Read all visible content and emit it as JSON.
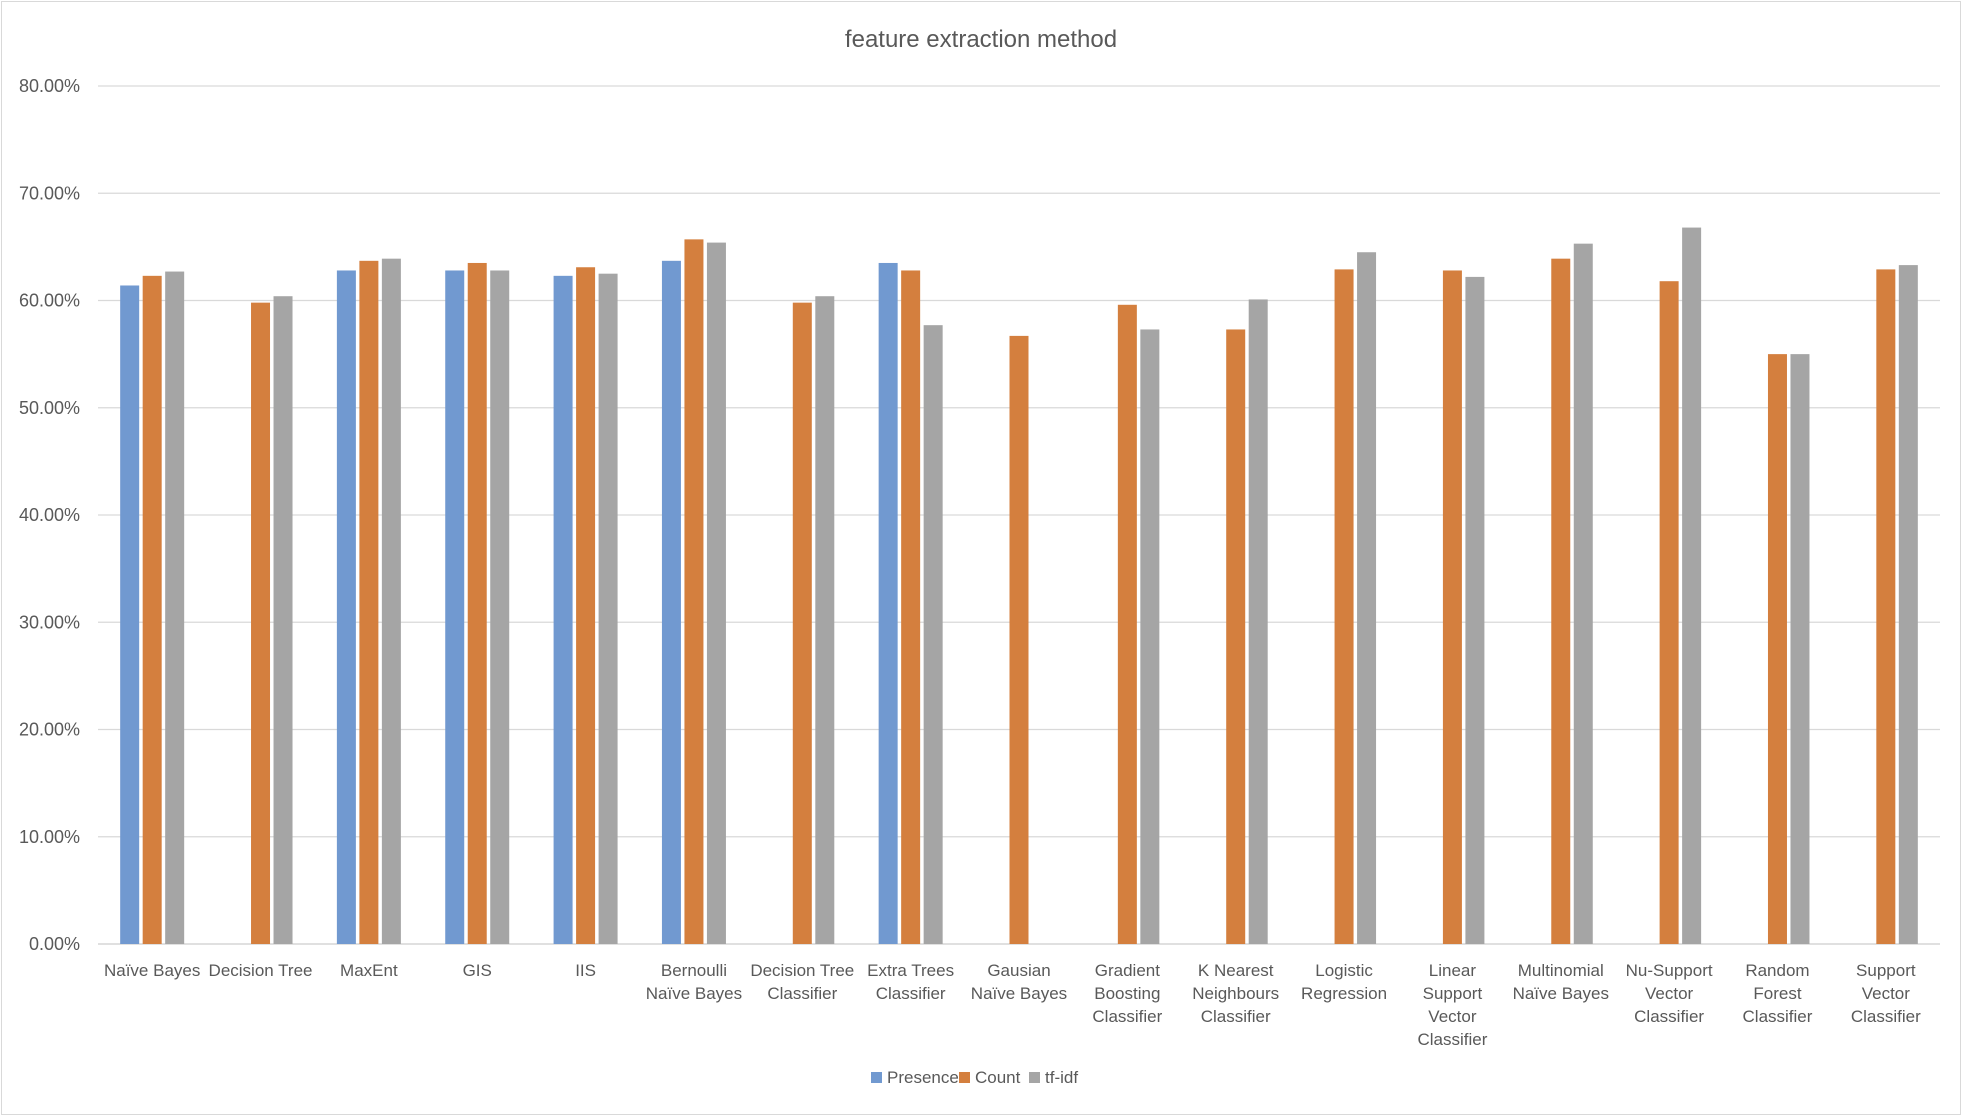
{
  "chart_data": {
    "type": "bar",
    "title": "feature extraction method",
    "xlabel": "",
    "ylabel": "",
    "ylim": [
      0,
      80
    ],
    "y_ticks": [
      "0.00%",
      "10.00%",
      "20.00%",
      "30.00%",
      "40.00%",
      "50.00%",
      "60.00%",
      "70.00%",
      "80.00%"
    ],
    "grid": true,
    "legend_position": "bottom",
    "categories": [
      [
        "Naïve  Bayes"
      ],
      [
        "Decision Tree"
      ],
      [
        "MaxEnt"
      ],
      [
        "GIS"
      ],
      [
        "IIS"
      ],
      [
        "Bernoulli",
        "Naïve Bayes"
      ],
      [
        "Decision Tree",
        "Classifier"
      ],
      [
        "Extra Trees",
        "Classifier"
      ],
      [
        "Gausian",
        "Naïve Bayes"
      ],
      [
        "Gradient",
        "Boosting",
        "Classifier"
      ],
      [
        "K Nearest",
        "Neighbours",
        "Classifier"
      ],
      [
        "Logistic",
        "Regression"
      ],
      [
        "Linear",
        "Support",
        "Vector",
        "Classifier"
      ],
      [
        "Multinomial",
        "Naïve Bayes"
      ],
      [
        "Nu-Support",
        "Vector",
        "Classifier"
      ],
      [
        "Random",
        "Forest",
        "Classifier"
      ],
      [
        "Support",
        "Vector",
        "Classifier"
      ]
    ],
    "series": [
      {
        "name": "Presence",
        "color": "#7199d0",
        "values": [
          61.4,
          null,
          62.8,
          62.8,
          62.3,
          63.7,
          null,
          63.5,
          null,
          null,
          null,
          null,
          null,
          null,
          null,
          null,
          null
        ]
      },
      {
        "name": "Count",
        "color": "#d47f3e",
        "values": [
          62.3,
          59.8,
          63.7,
          63.5,
          63.1,
          65.7,
          59.8,
          62.8,
          56.7,
          59.6,
          57.3,
          62.9,
          62.8,
          63.9,
          61.8,
          55.0,
          62.9
        ]
      },
      {
        "name": "tf-idf",
        "color": "#a5a5a5",
        "values": [
          62.7,
          60.4,
          63.9,
          62.8,
          62.5,
          65.4,
          60.4,
          57.7,
          null,
          57.3,
          60.1,
          64.5,
          62.2,
          65.3,
          66.8,
          55.0,
          63.3
        ]
      }
    ]
  }
}
